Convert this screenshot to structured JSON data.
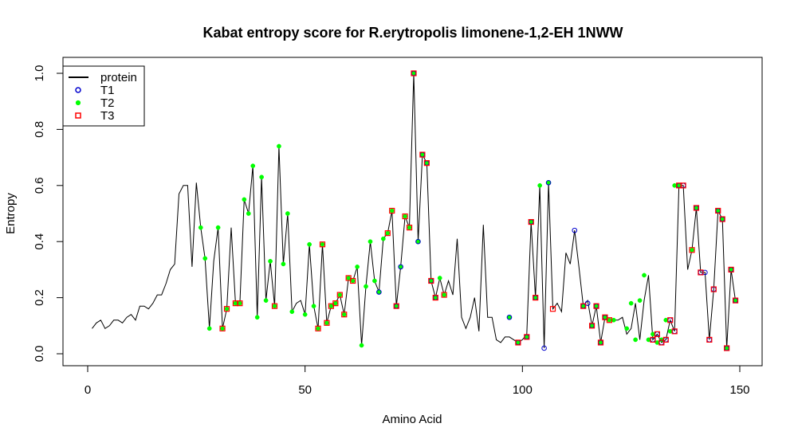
{
  "chart_data": {
    "type": "line",
    "title": "Kabat entropy score for  R.erytropolis limonene-1,2-EH 1NWW",
    "xlabel": "Amino Acid",
    "ylabel": "Entropy",
    "xlim": [
      0,
      150
    ],
    "ylim": [
      0,
      1
    ],
    "x_ticks": [
      "0",
      "50",
      "100",
      "150"
    ],
    "y_ticks": [
      "0.0",
      "0.2",
      "0.4",
      "0.6",
      "0.8",
      "1.0"
    ],
    "legend": {
      "position": "top-left",
      "entries": [
        {
          "label": "protein",
          "symbol": "line",
          "color": "#000000"
        },
        {
          "label": "T1",
          "symbol": "open-circle",
          "color": "#0000CD"
        },
        {
          "label": "T2",
          "symbol": "filled-circle",
          "color": "#00FF00"
        },
        {
          "label": "T3",
          "symbol": "open-square",
          "color": "#FF0000"
        }
      ]
    },
    "colors": {
      "protein": "#000000",
      "T1": "#0000CD",
      "T2": "#00FF00",
      "T3": "#FF0000"
    },
    "series": [
      {
        "name": "protein",
        "x": [
          1,
          2,
          3,
          4,
          5,
          6,
          7,
          8,
          9,
          10,
          11,
          12,
          13,
          14,
          15,
          16,
          17,
          18,
          19,
          20,
          21,
          22,
          23,
          24,
          25,
          26,
          27,
          28,
          29,
          30,
          31,
          32,
          33,
          34,
          35,
          36,
          37,
          38,
          39,
          40,
          41,
          42,
          43,
          44,
          45,
          46,
          47,
          48,
          49,
          50,
          51,
          52,
          53,
          54,
          55,
          56,
          57,
          58,
          59,
          60,
          61,
          62,
          63,
          64,
          65,
          66,
          67,
          68,
          69,
          70,
          71,
          72,
          73,
          74,
          75,
          76,
          77,
          78,
          79,
          80,
          81,
          82,
          83,
          84,
          85,
          86,
          87,
          88,
          89,
          90,
          91,
          92,
          93,
          94,
          95,
          96,
          97,
          98,
          99,
          100,
          101,
          102,
          103,
          104,
          105,
          106,
          107,
          108,
          109,
          110,
          111,
          112,
          113,
          114,
          115,
          116,
          117,
          118,
          119,
          120,
          121,
          122,
          123,
          124,
          125,
          126,
          127,
          128,
          129,
          130,
          131,
          132,
          133,
          134,
          135,
          136,
          137,
          138,
          139,
          140,
          141,
          142,
          143,
          144,
          145,
          146,
          147,
          148,
          149
        ],
        "values": [
          0.09,
          0.11,
          0.12,
          0.09,
          0.1,
          0.12,
          0.12,
          0.11,
          0.13,
          0.14,
          0.12,
          0.17,
          0.17,
          0.16,
          0.18,
          0.21,
          0.21,
          0.25,
          0.3,
          0.32,
          0.57,
          0.6,
          0.6,
          0.31,
          0.61,
          0.45,
          0.34,
          0.09,
          0.33,
          0.45,
          0.09,
          0.16,
          0.45,
          0.18,
          0.18,
          0.55,
          0.5,
          0.67,
          0.13,
          0.63,
          0.19,
          0.33,
          0.17,
          0.74,
          0.32,
          0.5,
          0.15,
          0.18,
          0.19,
          0.14,
          0.39,
          0.17,
          0.09,
          0.39,
          0.11,
          0.17,
          0.18,
          0.21,
          0.14,
          0.27,
          0.26,
          0.31,
          0.03,
          0.24,
          0.4,
          0.26,
          0.22,
          0.41,
          0.43,
          0.51,
          0.17,
          0.31,
          0.49,
          0.45,
          1.0,
          0.4,
          0.71,
          0.68,
          0.26,
          0.2,
          0.27,
          0.21,
          0.26,
          0.21,
          0.41,
          0.13,
          0.09,
          0.13,
          0.2,
          0.08,
          0.46,
          0.13,
          0.13,
          0.05,
          0.04,
          0.06,
          0.06,
          0.05,
          0.04,
          0.05,
          0.07,
          0.47,
          0.2,
          0.6,
          0.02,
          0.61,
          0.16,
          0.18,
          0.15,
          0.36,
          0.32,
          0.44,
          0.31,
          0.17,
          0.19,
          0.1,
          0.17,
          0.04,
          0.13,
          0.12,
          0.12,
          0.12,
          0.13,
          0.07,
          0.09,
          0.18,
          0.05,
          0.19,
          0.28,
          0.05,
          0.07,
          0.04,
          0.05,
          0.12,
          0.08,
          0.6,
          0.6,
          0.3,
          0.37,
          0.52,
          0.29,
          0.29,
          0.05,
          0.23,
          0.51,
          0.48,
          0.02,
          0.3,
          0.19
        ]
      },
      {
        "name": "T1",
        "x": [
          67,
          71,
          72,
          75,
          76,
          77,
          78,
          79,
          80,
          97,
          99,
          101,
          102,
          103,
          105,
          106,
          112,
          114,
          115,
          116,
          117,
          118,
          119,
          130,
          131,
          132,
          133,
          134,
          135,
          136,
          137,
          140,
          141,
          142,
          143,
          144,
          145,
          146,
          147,
          148,
          149
        ],
        "values": [
          0.22,
          0.17,
          0.31,
          1.0,
          0.4,
          0.71,
          0.68,
          0.26,
          0.2,
          0.13,
          0.04,
          0.06,
          0.47,
          0.2,
          0.02,
          0.61,
          0.44,
          0.17,
          0.18,
          0.1,
          0.17,
          0.04,
          0.13,
          0.05,
          0.07,
          0.04,
          0.05,
          0.12,
          0.08,
          0.6,
          0.6,
          0.52,
          0.29,
          0.29,
          0.05,
          0.23,
          0.51,
          0.48,
          0.02,
          0.3,
          0.19
        ]
      },
      {
        "name": "T2",
        "x": [
          26,
          27,
          28,
          30,
          31,
          32,
          34,
          35,
          36,
          37,
          38,
          39,
          40,
          41,
          42,
          43,
          44,
          45,
          46,
          47,
          50,
          51,
          52,
          53,
          54,
          55,
          56,
          57,
          58,
          59,
          60,
          61,
          62,
          63,
          64,
          65,
          66,
          67,
          68,
          69,
          70,
          71,
          72,
          73,
          74,
          75,
          76,
          77,
          78,
          79,
          80,
          81,
          82,
          97,
          99,
          101,
          102,
          103,
          104,
          106,
          114,
          116,
          117,
          118,
          119,
          120,
          121,
          124,
          125,
          126,
          127,
          128,
          129,
          130,
          131,
          132,
          133,
          134,
          135,
          136,
          139,
          140,
          145,
          146,
          147,
          148,
          149
        ],
        "values": [
          0.45,
          0.34,
          0.09,
          0.45,
          0.09,
          0.16,
          0.18,
          0.18,
          0.55,
          0.5,
          0.67,
          0.13,
          0.63,
          0.19,
          0.33,
          0.17,
          0.74,
          0.32,
          0.5,
          0.15,
          0.14,
          0.39,
          0.17,
          0.09,
          0.39,
          0.11,
          0.17,
          0.18,
          0.21,
          0.14,
          0.27,
          0.26,
          0.31,
          0.03,
          0.24,
          0.4,
          0.26,
          0.22,
          0.41,
          0.43,
          0.51,
          0.17,
          0.31,
          0.49,
          0.45,
          1.0,
          0.4,
          0.71,
          0.68,
          0.26,
          0.2,
          0.27,
          0.21,
          0.13,
          0.04,
          0.06,
          0.47,
          0.2,
          0.6,
          0.61,
          0.17,
          0.1,
          0.17,
          0.04,
          0.13,
          0.12,
          0.12,
          0.09,
          0.18,
          0.05,
          0.19,
          0.28,
          0.05,
          0.07,
          0.04,
          0.05,
          0.12,
          0.08,
          0.6,
          0.6,
          0.37,
          0.52,
          0.51,
          0.48,
          0.02,
          0.3,
          0.19
        ]
      },
      {
        "name": "T3",
        "x": [
          31,
          32,
          34,
          35,
          43,
          53,
          54,
          55,
          56,
          57,
          58,
          59,
          60,
          61,
          69,
          70,
          71,
          73,
          74,
          75,
          77,
          78,
          79,
          80,
          82,
          99,
          101,
          102,
          103,
          107,
          114,
          116,
          117,
          118,
          119,
          120,
          130,
          131,
          132,
          133,
          134,
          135,
          136,
          137,
          139,
          140,
          141,
          143,
          144,
          145,
          146,
          147,
          148,
          149
        ],
        "values": [
          0.09,
          0.16,
          0.18,
          0.18,
          0.17,
          0.09,
          0.39,
          0.11,
          0.17,
          0.18,
          0.21,
          0.14,
          0.27,
          0.26,
          0.43,
          0.51,
          0.17,
          0.49,
          0.45,
          1.0,
          0.71,
          0.68,
          0.26,
          0.2,
          0.21,
          0.04,
          0.06,
          0.47,
          0.2,
          0.16,
          0.17,
          0.1,
          0.17,
          0.04,
          0.13,
          0.12,
          0.05,
          0.07,
          0.04,
          0.05,
          0.12,
          0.08,
          0.6,
          0.6,
          0.37,
          0.52,
          0.29,
          0.05,
          0.23,
          0.51,
          0.48,
          0.02,
          0.3,
          0.19
        ]
      }
    ]
  }
}
